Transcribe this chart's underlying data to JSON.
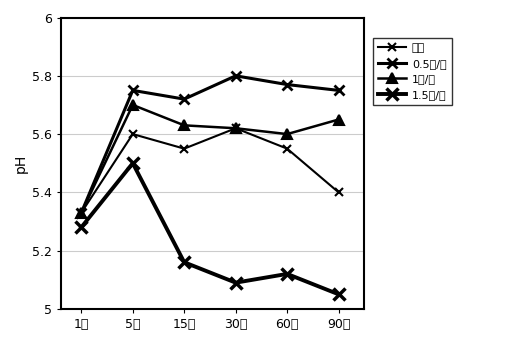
{
  "x_labels": [
    "1天",
    "5天",
    "15天",
    "30天",
    "60天",
    "90天"
  ],
  "series": [
    {
      "label": "空白",
      "values": [
        5.33,
        5.6,
        5.55,
        5.62,
        5.55,
        5.4
      ],
      "marker": "x",
      "linewidth": 1.5,
      "markersize": 6,
      "markeredgewidth": 1.5
    },
    {
      "label": "0.5吨/亩",
      "values": [
        5.33,
        5.75,
        5.72,
        5.8,
        5.77,
        5.75
      ],
      "marker": "x",
      "linewidth": 2.2,
      "markersize": 7,
      "markeredgewidth": 2.0
    },
    {
      "label": "1吨/亩",
      "values": [
        5.33,
        5.7,
        5.63,
        5.62,
        5.6,
        5.65
      ],
      "marker": "^",
      "linewidth": 1.8,
      "markersize": 7,
      "markeredgewidth": 1.5
    },
    {
      "label": "1.5吨/亩",
      "values": [
        5.28,
        5.5,
        5.16,
        5.09,
        5.12,
        5.05
      ],
      "marker": "x",
      "linewidth": 2.8,
      "markersize": 8,
      "markeredgewidth": 2.5
    }
  ],
  "ylabel": "pH",
  "ylim": [
    5.0,
    6.0
  ],
  "yticks": [
    5.0,
    5.2,
    5.4,
    5.6,
    5.8,
    6.0
  ],
  "ytick_labels": [
    "5",
    "5.2",
    "5.4",
    "5.6",
    "5.8",
    "6"
  ],
  "background_color": "#ffffff",
  "line_color": "#000000",
  "grid_color": "#cccccc"
}
